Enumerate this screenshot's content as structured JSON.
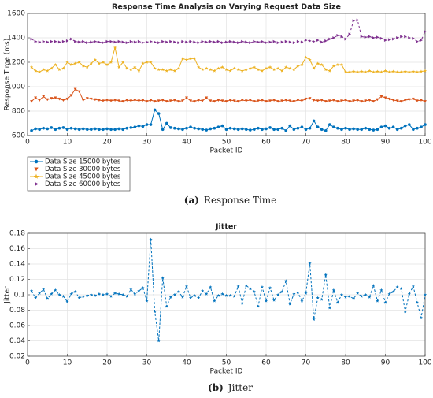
{
  "chart_data": [
    {
      "type": "line",
      "title": "Response Time Analysis on Varying Request Data Size",
      "xlabel": "Packet ID",
      "ylabel": "Response Time (ms)",
      "caption_label": "(a)",
      "caption": "Response Time",
      "xlim": [
        0,
        100
      ],
      "xticks": [
        0,
        10,
        20,
        30,
        40,
        50,
        60,
        70,
        80,
        90,
        100
      ],
      "ylim": [
        600,
        1600
      ],
      "yticks": [
        600,
        800,
        1000,
        1200,
        1400,
        1600
      ],
      "grid": true,
      "legend": "below-left",
      "x": [
        1,
        2,
        3,
        4,
        5,
        6,
        7,
        8,
        9,
        10,
        11,
        12,
        13,
        14,
        15,
        16,
        17,
        18,
        19,
        20,
        21,
        22,
        23,
        24,
        25,
        26,
        27,
        28,
        29,
        30,
        31,
        32,
        33,
        34,
        35,
        36,
        37,
        38,
        39,
        40,
        41,
        42,
        43,
        44,
        45,
        46,
        47,
        48,
        49,
        50,
        51,
        52,
        53,
        54,
        55,
        56,
        57,
        58,
        59,
        60,
        61,
        62,
        63,
        64,
        65,
        66,
        67,
        68,
        69,
        70,
        71,
        72,
        73,
        74,
        75,
        76,
        77,
        78,
        79,
        80,
        81,
        82,
        83,
        84,
        85,
        86,
        87,
        88,
        89,
        90,
        91,
        92,
        93,
        94,
        95,
        96,
        97,
        98,
        99,
        100
      ],
      "series": [
        {
          "name": "Data Size 15000 bytes",
          "color": "#0072bd",
          "marker": "circle",
          "dash": false,
          "values": [
            640,
            655,
            650,
            660,
            655,
            665,
            650,
            660,
            665,
            650,
            660,
            655,
            650,
            655,
            650,
            650,
            655,
            650,
            650,
            655,
            650,
            650,
            655,
            650,
            660,
            665,
            670,
            680,
            675,
            690,
            690,
            810,
            780,
            650,
            700,
            665,
            660,
            655,
            650,
            660,
            670,
            660,
            655,
            650,
            645,
            655,
            660,
            670,
            680,
            650,
            660,
            655,
            650,
            655,
            650,
            645,
            650,
            660,
            650,
            655,
            665,
            650,
            650,
            660,
            640,
            680,
            650,
            660,
            670,
            650,
            660,
            720,
            670,
            650,
            640,
            690,
            670,
            660,
            650,
            660,
            650,
            655,
            650,
            650,
            660,
            650,
            645,
            650,
            670,
            680,
            660,
            670,
            650,
            660,
            680,
            690,
            650,
            660,
            670,
            690
          ]
        },
        {
          "name": "Data Size 30000 bytes",
          "color": "#d95319",
          "marker": "triangle-down",
          "dash": false,
          "values": [
            880,
            910,
            890,
            920,
            895,
            905,
            910,
            900,
            890,
            900,
            930,
            980,
            960,
            890,
            905,
            900,
            895,
            890,
            885,
            890,
            885,
            890,
            885,
            880,
            890,
            885,
            890,
            885,
            890,
            880,
            890,
            880,
            885,
            890,
            880,
            885,
            890,
            880,
            885,
            910,
            885,
            880,
            890,
            885,
            910,
            885,
            880,
            890,
            885,
            880,
            890,
            885,
            880,
            890,
            885,
            890,
            880,
            885,
            890,
            880,
            885,
            890,
            880,
            885,
            890,
            885,
            880,
            890,
            885,
            900,
            905,
            890,
            885,
            890,
            880,
            885,
            890,
            880,
            885,
            890,
            880,
            885,
            890,
            880,
            885,
            890,
            880,
            895,
            920,
            910,
            900,
            890,
            885,
            880,
            890,
            895,
            900,
            885,
            890,
            880
          ]
        },
        {
          "name": "Data Size 45000 bytes",
          "color": "#edb120",
          "marker": "star",
          "dash": false,
          "values": [
            1160,
            1130,
            1120,
            1140,
            1130,
            1150,
            1180,
            1140,
            1150,
            1200,
            1180,
            1190,
            1200,
            1170,
            1160,
            1190,
            1220,
            1190,
            1200,
            1180,
            1200,
            1320,
            1160,
            1200,
            1150,
            1140,
            1160,
            1130,
            1190,
            1200,
            1200,
            1150,
            1140,
            1140,
            1130,
            1140,
            1130,
            1150,
            1230,
            1220,
            1230,
            1230,
            1160,
            1140,
            1150,
            1140,
            1130,
            1150,
            1160,
            1140,
            1130,
            1150,
            1140,
            1130,
            1140,
            1150,
            1160,
            1140,
            1130,
            1150,
            1160,
            1140,
            1150,
            1130,
            1160,
            1150,
            1140,
            1170,
            1180,
            1240,
            1220,
            1150,
            1190,
            1180,
            1140,
            1130,
            1170,
            1180,
            1180,
            1120,
            1120,
            1125,
            1120,
            1125,
            1120,
            1130,
            1120,
            1125,
            1120,
            1130,
            1120,
            1125,
            1120,
            1120,
            1125,
            1120,
            1125,
            1120,
            1125,
            1130
          ]
        },
        {
          "name": "Data Size 60000 bytes",
          "color": "#7e2f8e",
          "marker": "triangle-right",
          "dash": true,
          "values": [
            1390,
            1370,
            1365,
            1370,
            1365,
            1370,
            1370,
            1365,
            1370,
            1375,
            1390,
            1370,
            1365,
            1370,
            1360,
            1365,
            1370,
            1365,
            1360,
            1370,
            1370,
            1365,
            1370,
            1365,
            1360,
            1370,
            1365,
            1370,
            1360,
            1365,
            1370,
            1365,
            1360,
            1370,
            1365,
            1370,
            1365,
            1360,
            1370,
            1365,
            1370,
            1365,
            1360,
            1370,
            1365,
            1370,
            1365,
            1370,
            1360,
            1365,
            1370,
            1365,
            1360,
            1370,
            1365,
            1360,
            1370,
            1365,
            1370,
            1360,
            1365,
            1370,
            1360,
            1365,
            1370,
            1365,
            1360,
            1370,
            1365,
            1380,
            1375,
            1370,
            1380,
            1365,
            1375,
            1390,
            1400,
            1420,
            1410,
            1390,
            1430,
            1540,
            1545,
            1410,
            1405,
            1410,
            1400,
            1405,
            1395,
            1380,
            1385,
            1390,
            1400,
            1410,
            1410,
            1400,
            1395,
            1370,
            1380,
            1450
          ]
        }
      ]
    },
    {
      "type": "line",
      "title": "Jitter",
      "xlabel": "Packet ID",
      "ylabel": "Jitter",
      "caption_label": "(b)",
      "caption": "Jitter",
      "xlim": [
        0,
        100
      ],
      "xticks": [
        0,
        10,
        20,
        30,
        40,
        50,
        60,
        70,
        80,
        90,
        100
      ],
      "ylim": [
        0.02,
        0.18
      ],
      "yticks": [
        0.02,
        0.04,
        0.06,
        0.08,
        0.1,
        0.12,
        0.14,
        0.16,
        0.18
      ],
      "grid": true,
      "x": [
        1,
        2,
        3,
        4,
        5,
        6,
        7,
        8,
        9,
        10,
        11,
        12,
        13,
        14,
        15,
        16,
        17,
        18,
        19,
        20,
        21,
        22,
        23,
        24,
        25,
        26,
        27,
        28,
        29,
        30,
        31,
        32,
        33,
        34,
        35,
        36,
        37,
        38,
        39,
        40,
        41,
        42,
        43,
        44,
        45,
        46,
        47,
        48,
        49,
        50,
        51,
        52,
        53,
        54,
        55,
        56,
        57,
        58,
        59,
        60,
        61,
        62,
        63,
        64,
        65,
        66,
        67,
        68,
        69,
        70,
        71,
        72,
        73,
        74,
        75,
        76,
        77,
        78,
        79,
        80,
        81,
        82,
        83,
        84,
        85,
        86,
        87,
        88,
        89,
        90,
        91,
        92,
        93,
        94,
        95,
        96,
        97,
        98,
        99,
        100
      ],
      "series": [
        {
          "color": "#0072bd",
          "marker": "star",
          "dash": true,
          "values": [
            0.105,
            0.096,
            0.102,
            0.107,
            0.095,
            0.101,
            0.106,
            0.1,
            0.098,
            0.091,
            0.101,
            0.104,
            0.096,
            0.098,
            0.099,
            0.1,
            0.099,
            0.101,
            0.1,
            0.101,
            0.098,
            0.102,
            0.101,
            0.1,
            0.098,
            0.107,
            0.101,
            0.105,
            0.109,
            0.092,
            0.172,
            0.078,
            0.04,
            0.122,
            0.085,
            0.097,
            0.1,
            0.104,
            0.097,
            0.111,
            0.096,
            0.099,
            0.096,
            0.105,
            0.101,
            0.11,
            0.092,
            0.099,
            0.101,
            0.099,
            0.099,
            0.098,
            0.111,
            0.089,
            0.112,
            0.108,
            0.104,
            0.085,
            0.11,
            0.092,
            0.109,
            0.093,
            0.1,
            0.104,
            0.118,
            0.088,
            0.101,
            0.103,
            0.092,
            0.102,
            0.141,
            0.068,
            0.096,
            0.094,
            0.126,
            0.083,
            0.106,
            0.09,
            0.1,
            0.097,
            0.098,
            0.095,
            0.102,
            0.098,
            0.1,
            0.097,
            0.112,
            0.092,
            0.106,
            0.09,
            0.101,
            0.104,
            0.11,
            0.108,
            0.078,
            0.101,
            0.111,
            0.09,
            0.07,
            0.1
          ]
        }
      ]
    }
  ]
}
